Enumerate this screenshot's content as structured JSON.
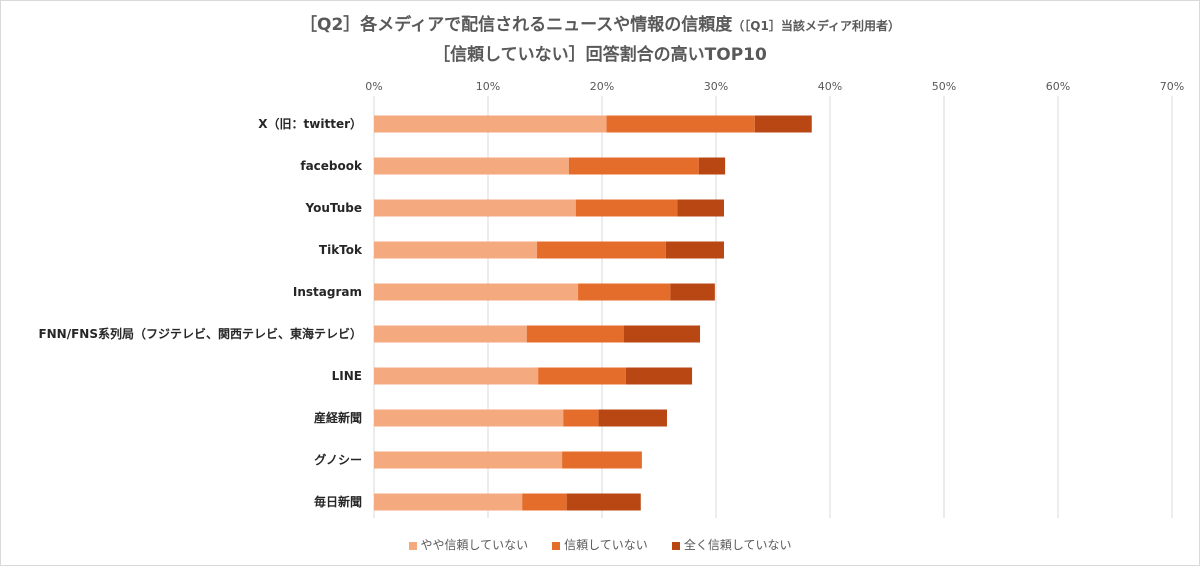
{
  "colors": {
    "series1": "#f4a97e",
    "series2": "#e46d2b",
    "series3": "#b84714",
    "grid": "#d9d9d9",
    "text": "#595959"
  },
  "chart_data": {
    "type": "bar",
    "orientation": "horizontal",
    "stacked": true,
    "title_line1_main": "［Q2］各メディアで配信されるニュースや情報の信頼度",
    "title_line1_sub": "（［Q1］当該メディア利用者）",
    "title_line2": "［信頼していない］回答割合の高いTOP10",
    "x_ticks": [
      "0%",
      "10%",
      "20%",
      "30%",
      "40%",
      "50%",
      "60%",
      "70%"
    ],
    "xlim": [
      0,
      70
    ],
    "grid": true,
    "legend_position": "bottom",
    "categories": [
      "X（旧：twitter）",
      "facebook",
      "YouTube",
      "TikTok",
      "Instagram",
      "FNN/FNS系列局（フジテレビ、関西テレビ、東海テレビ）",
      "LINE",
      "産経新聞",
      "グノシー",
      "毎日新聞"
    ],
    "series": [
      {
        "name": "やや信頼していない",
        "values": [
          20.4,
          17.1,
          17.7,
          14.3,
          17.9,
          13.4,
          14.4,
          16.6,
          16.5,
          13.0
        ]
      },
      {
        "name": "信頼していない",
        "values": [
          13.0,
          11.4,
          8.9,
          11.3,
          8.1,
          8.5,
          7.7,
          3.1,
          7.0,
          3.9
        ]
      },
      {
        "name": "全く信頼していない",
        "values": [
          5.0,
          2.3,
          4.1,
          5.1,
          3.9,
          6.7,
          5.8,
          6.0,
          0.0,
          6.5
        ]
      }
    ]
  }
}
